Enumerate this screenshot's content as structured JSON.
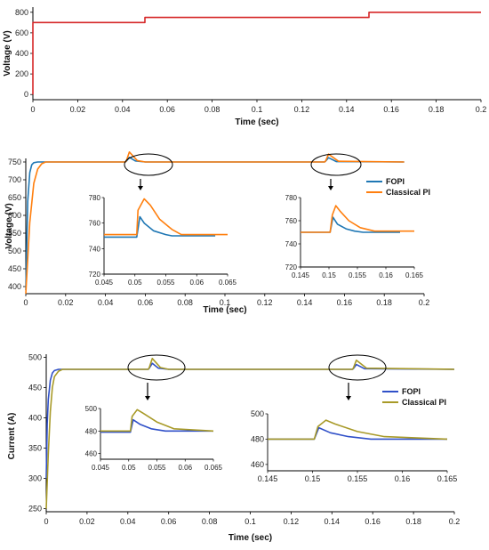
{
  "chart_data": [
    {
      "type": "line",
      "xlabel": "Time (sec)",
      "ylabel": "Voltage (V)",
      "xlim": [
        0,
        0.2
      ],
      "ylim": [
        -50,
        850
      ],
      "xticks": [
        "0",
        "0.02",
        "0.04",
        "0.06",
        "0.08",
        "0.1",
        "0.12",
        "0.14",
        "0.16",
        "0.18",
        "0.2"
      ],
      "yticks": [
        "0",
        "200",
        "400",
        "600",
        "800"
      ],
      "series": [
        {
          "color": "#d62728",
          "x": [
            0,
            0,
            0.05,
            0.05,
            0.15,
            0.15,
            0.2
          ],
          "y": [
            0,
            700,
            700,
            750,
            750,
            800,
            800
          ]
        }
      ]
    },
    {
      "type": "line",
      "xlabel": "Time (sec)",
      "ylabel": "Voltage (V)",
      "xlim": [
        0,
        0.2
      ],
      "ylim": [
        380,
        760
      ],
      "xticks": [
        "0",
        "0.02",
        "0.04",
        "0.06",
        "0.08",
        "0.1",
        "0.12",
        "0.14",
        "0.16",
        "0.18",
        "0.2"
      ],
      "yticks": [
        "400",
        "450",
        "500",
        "550",
        "600",
        "650",
        "700",
        "750"
      ],
      "legend": {
        "placement": "right"
      },
      "series": [
        {
          "name": "FOPI",
          "color": "#1f77b4",
          "x": [
            0,
            0.001,
            0.002,
            0.003,
            0.004,
            0.006,
            0.05,
            0.0505,
            0.052,
            0.055,
            0.06,
            0.15,
            0.1505,
            0.152,
            0.156,
            0.19
          ],
          "y": [
            390,
            640,
            720,
            742,
            748,
            750,
            750,
            752,
            763,
            753,
            750,
            750,
            752,
            762,
            751,
            750
          ]
        },
        {
          "name": "Classical PI",
          "color": "#ff7f0e",
          "x": [
            0,
            0.002,
            0.004,
            0.006,
            0.008,
            0.01,
            0.05,
            0.0505,
            0.052,
            0.056,
            0.06,
            0.15,
            0.1505,
            0.152,
            0.157,
            0.19
          ],
          "y": [
            380,
            580,
            690,
            730,
            745,
            750,
            750,
            753,
            778,
            754,
            750,
            750,
            752,
            772,
            752,
            750
          ]
        }
      ],
      "insets": [
        {
          "xlim": [
            0.045,
            0.065
          ],
          "ylim": [
            720,
            780
          ],
          "xticks": [
            "0.045",
            "0.05",
            "0.055",
            "0.06",
            "0.065"
          ],
          "yticks": [
            "720",
            "740",
            "760",
            "780"
          ],
          "series": [
            {
              "name": "FOPI",
              "color": "#1f77b4",
              "x": [
                0.045,
                0.0503,
                0.0508,
                0.0515,
                0.053,
                0.055,
                0.056,
                0.0575,
                0.063
              ],
              "y": [
                749,
                749,
                765,
                760,
                754,
                751,
                750,
                750,
                750
              ]
            },
            {
              "name": "Classical PI",
              "color": "#ff7f0e",
              "x": [
                0.045,
                0.0503,
                0.0505,
                0.0515,
                0.0525,
                0.054,
                0.056,
                0.0575,
                0.065
              ],
              "y": [
                751,
                751,
                770,
                779,
                774,
                763,
                755,
                751,
                751
              ]
            }
          ]
        },
        {
          "xlim": [
            0.145,
            0.165
          ],
          "ylim": [
            720,
            780
          ],
          "xticks": [
            "0.145",
            "0.15",
            "0.155",
            "0.16",
            "0.165"
          ],
          "yticks": [
            "720",
            "740",
            "760",
            "780"
          ],
          "series": [
            {
              "name": "FOPI",
              "color": "#1f77b4",
              "x": [
                0.145,
                0.1502,
                0.1507,
                0.1515,
                0.153,
                0.1545,
                0.156,
                0.1625
              ],
              "y": [
                750,
                750,
                763,
                757,
                753,
                751,
                750,
                750
              ]
            },
            {
              "name": "Classical PI",
              "color": "#ff7f0e",
              "x": [
                0.145,
                0.1502,
                0.1506,
                0.1512,
                0.152,
                0.1535,
                0.1555,
                0.158,
                0.165
              ],
              "y": [
                750,
                750,
                765,
                773,
                768,
                760,
                754,
                751,
                751
              ]
            }
          ]
        }
      ]
    },
    {
      "type": "line",
      "xlabel": "Time (sec)",
      "ylabel": "Current (A)",
      "xlim": [
        0,
        0.2
      ],
      "ylim": [
        245,
        505
      ],
      "xticks": [
        "0",
        "0.02",
        "0.04",
        "0.06",
        "0.08",
        "0.1",
        "0.12",
        "0.14",
        "0.16",
        "0.18",
        "0.2"
      ],
      "yticks": [
        "250",
        "300",
        "350",
        "400",
        "450",
        "500"
      ],
      "legend": {
        "placement": "right"
      },
      "series": [
        {
          "name": "FOPI",
          "color": "#3050c8",
          "x": [
            0,
            0.0005,
            0.001,
            0.002,
            0.003,
            0.004,
            0.006,
            0.05,
            0.0505,
            0.052,
            0.055,
            0.06,
            0.15,
            0.1505,
            0.152,
            0.156,
            0.2
          ],
          "y": [
            300,
            390,
            430,
            462,
            474,
            478,
            480,
            480,
            482,
            490,
            482,
            480,
            480,
            481,
            488,
            481,
            480
          ]
        },
        {
          "name": "Classical PI",
          "color": "#a89a28",
          "x": [
            0,
            0.001,
            0.002,
            0.003,
            0.004,
            0.006,
            0.008,
            0.05,
            0.0505,
            0.052,
            0.056,
            0.06,
            0.15,
            0.1505,
            0.152,
            0.157,
            0.2
          ],
          "y": [
            250,
            340,
            410,
            450,
            468,
            477,
            480,
            480,
            483,
            498,
            483,
            480,
            480,
            482,
            495,
            482,
            480
          ]
        }
      ],
      "insets": [
        {
          "xlim": [
            0.045,
            0.065
          ],
          "ylim": [
            455,
            500
          ],
          "xticks": [
            "0.045",
            "0.05",
            "0.055",
            "0.06",
            "0.065"
          ],
          "yticks": [
            "460",
            "480",
            "500"
          ],
          "series": [
            {
              "name": "FOPI",
              "color": "#3050c8",
              "x": [
                0.045,
                0.0503,
                0.0508,
                0.052,
                0.054,
                0.0565,
                0.065
              ],
              "y": [
                479,
                479,
                490,
                486,
                482,
                480,
                480
              ]
            },
            {
              "name": "Classical PI",
              "color": "#a89a28",
              "x": [
                0.045,
                0.0503,
                0.0506,
                0.0515,
                0.0525,
                0.055,
                0.058,
                0.065
              ],
              "y": [
                480,
                480,
                493,
                499,
                496,
                488,
                482,
                480
              ]
            }
          ]
        },
        {
          "xlim": [
            0.145,
            0.165
          ],
          "ylim": [
            455,
            500
          ],
          "xticks": [
            "0.145",
            "0.15",
            "0.155",
            "0.16",
            "0.165"
          ],
          "yticks": [
            "460",
            "480",
            "500"
          ],
          "series": [
            {
              "name": "FOPI",
              "color": "#3050c8",
              "x": [
                0.145,
                0.1502,
                0.1507,
                0.152,
                0.154,
                0.1565,
                0.165
              ],
              "y": [
                480,
                480,
                489,
                485,
                482,
                480,
                480
              ]
            },
            {
              "name": "Classical PI",
              "color": "#a89a28",
              "x": [
                0.145,
                0.1502,
                0.1506,
                0.1515,
                0.1525,
                0.155,
                0.158,
                0.165
              ],
              "y": [
                480,
                480,
                490,
                495,
                492,
                486,
                482,
                480
              ]
            }
          ]
        }
      ]
    }
  ]
}
